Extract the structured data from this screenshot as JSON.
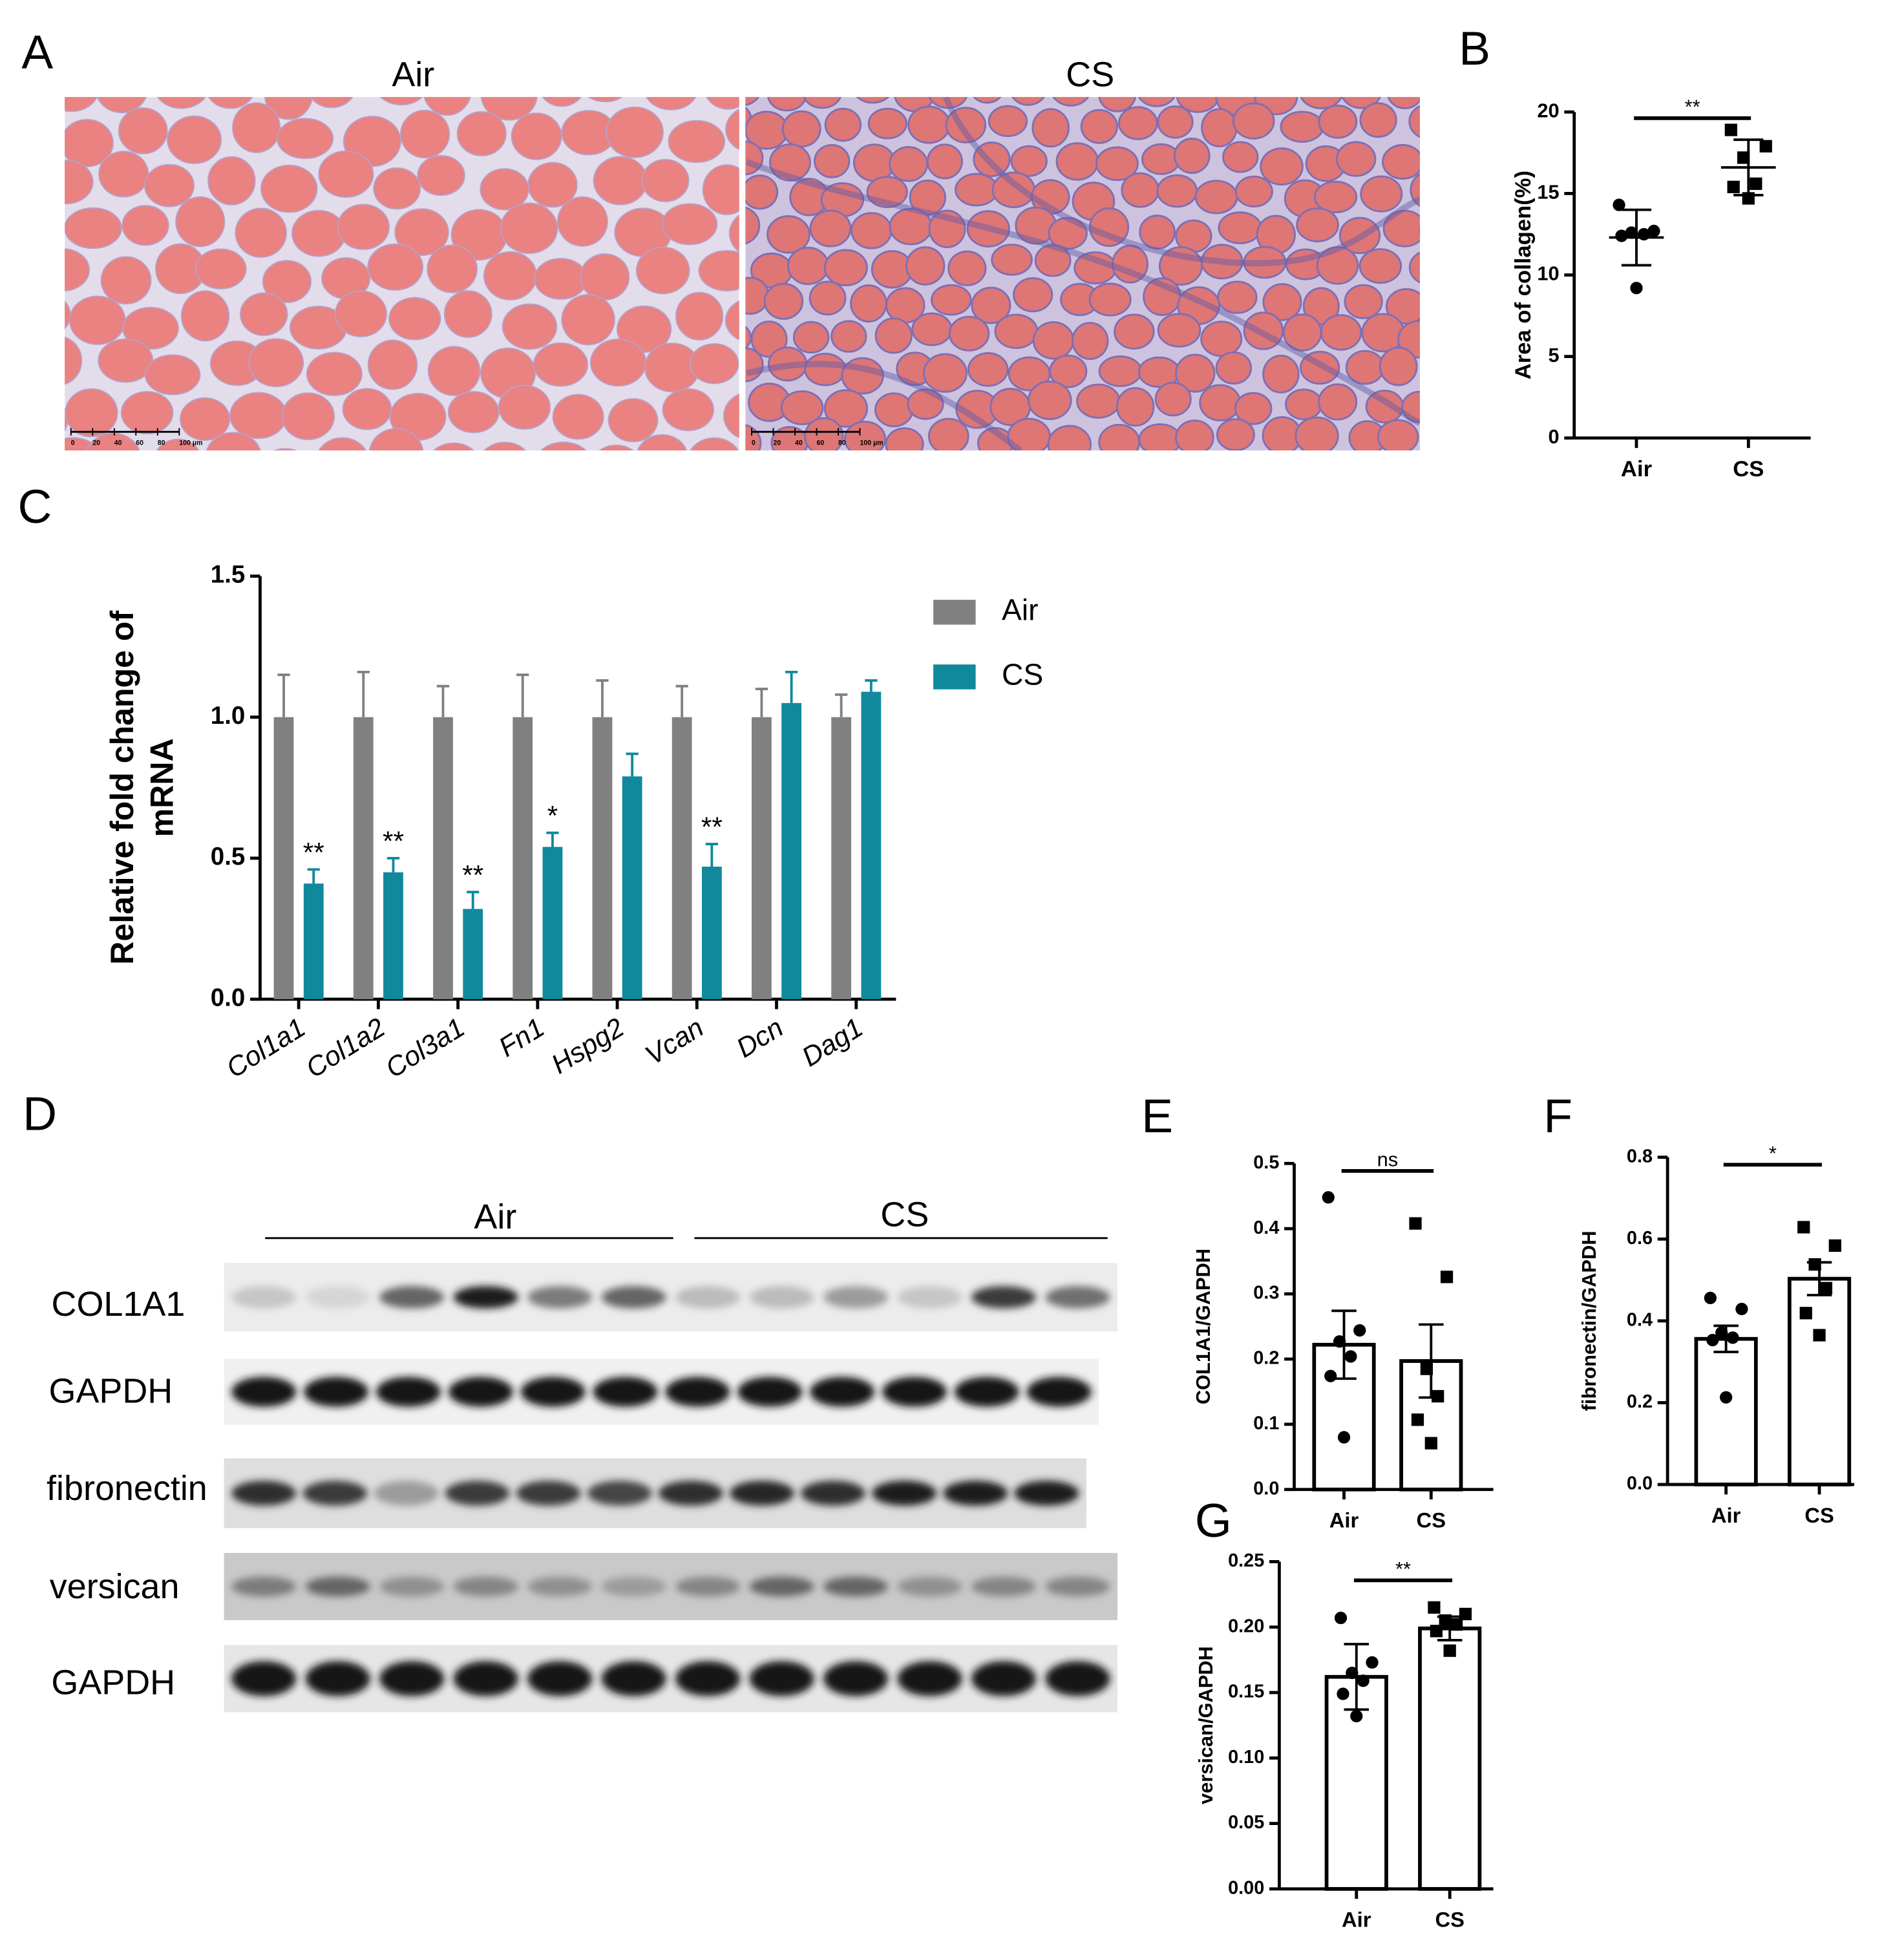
{
  "panel_labels": [
    "A",
    "B",
    "C",
    "D",
    "E",
    "F",
    "G"
  ],
  "histology": {
    "groups": [
      "Air",
      "CS"
    ],
    "scale_bar": [
      "0",
      "20",
      "40",
      "60",
      "80",
      "100 µm"
    ]
  },
  "western_blot": {
    "groups": [
      "Air",
      "CS"
    ],
    "rows": [
      "COL1A1",
      "GAPDH",
      "fibronectin",
      "versican",
      "GAPDH"
    ]
  },
  "chart_data": [
    {
      "type": "dot",
      "ylabel": "Area of collagen(%)",
      "categories": [
        "Air",
        "CS"
      ],
      "points": [
        [
          14.3,
          12.7,
          12.6,
          12.5,
          12.4,
          9.2
        ],
        [
          18.9,
          17.9,
          17.2,
          15.6,
          15.4,
          14.7
        ]
      ],
      "means": [
        12.3,
        16.6
      ],
      "errors": [
        1.7,
        1.7
      ],
      "markers": [
        "circle",
        "square"
      ],
      "ylim": [
        0,
        20
      ],
      "yticks": [
        0,
        5,
        10,
        15,
        20
      ],
      "annotation": "**"
    },
    {
      "type": "bar",
      "ylabel": [
        "Relative fold change of",
        "mRNA"
      ],
      "categories": [
        "Col1a1",
        "Col1a2",
        "Col3a1",
        "Fn1",
        "Hspg2",
        "Vcan",
        "Dcn",
        "Dag1"
      ],
      "series": [
        {
          "name": "Air",
          "color": "#808080",
          "values": [
            1,
            1,
            1,
            1,
            1,
            1,
            1,
            1
          ],
          "errors": [
            0.15,
            0.16,
            0.11,
            0.15,
            0.13,
            0.11,
            0.1,
            0.08
          ]
        },
        {
          "name": "CS",
          "color": "#10899c",
          "values": [
            0.41,
            0.45,
            0.32,
            0.54,
            0.79,
            0.47,
            1.05,
            1.09
          ],
          "errors": [
            0.05,
            0.05,
            0.06,
            0.05,
            0.08,
            0.08,
            0.11,
            0.04
          ]
        }
      ],
      "annotations": [
        "**",
        "**",
        "**",
        "*",
        null,
        "**",
        null,
        null
      ],
      "ylim": [
        0,
        1.5
      ],
      "yticks": [
        {
          "value": 0,
          "label": "0.0"
        },
        0.5,
        {
          "value": 1,
          "label": "1.0"
        },
        1.5
      ],
      "legend": "top-right"
    },
    {
      "type": "bar",
      "ylabel": "COL1A1/GAPDH",
      "categories": [
        "Air",
        "CS"
      ],
      "values": [
        0.222,
        0.197
      ],
      "errors": [
        0.052,
        0.056
      ],
      "points": [
        [
          0.448,
          0.244,
          0.227,
          0.204,
          0.174,
          0.08
        ],
        [
          0.408,
          0.326,
          0.185,
          0.143,
          0.107,
          0.071
        ]
      ],
      "markers": [
        "circle",
        "square"
      ],
      "ylim": [
        0,
        0.5
      ],
      "yticks": [
        {
          "value": 0,
          "label": "0.0"
        },
        0.1,
        0.2,
        0.3,
        0.4,
        0.5
      ],
      "annotation": "ns"
    },
    {
      "type": "bar",
      "ylabel": "fibronectin/GAPDH",
      "categories": [
        "Air",
        "CS"
      ],
      "values": [
        0.356,
        0.503
      ],
      "errors": [
        0.032,
        0.04
      ],
      "points": [
        [
          0.456,
          0.429,
          0.371,
          0.359,
          0.353,
          0.213
        ],
        [
          0.629,
          0.584,
          0.538,
          0.48,
          0.419,
          0.365
        ]
      ],
      "markers": [
        "circle",
        "square"
      ],
      "ylim": [
        0,
        0.8
      ],
      "yticks": [
        {
          "value": 0,
          "label": "0.0"
        },
        0.2,
        0.4,
        0.6,
        0.8
      ],
      "annotation": "*"
    },
    {
      "type": "bar",
      "ylabel": "versican/GAPDH",
      "categories": [
        "Air",
        "CS"
      ],
      "values": [
        0.162,
        0.199
      ],
      "errors": [
        0.025,
        0.009
      ],
      "points": [
        [
          0.207,
          0.173,
          0.165,
          0.159,
          0.149,
          0.132
        ],
        [
          0.215,
          0.21,
          0.205,
          0.202,
          0.197,
          0.182
        ]
      ],
      "markers": [
        "circle",
        "square"
      ],
      "ylim": [
        0,
        0.25
      ],
      "yticks": [
        {
          "value": 0,
          "label": "0.00"
        },
        {
          "value": 0.05,
          "label": "0.05"
        },
        {
          "value": 0.1,
          "label": "0.10"
        },
        {
          "value": 0.15,
          "label": "0.15"
        },
        {
          "value": 0.2,
          "label": "0.20"
        },
        {
          "value": 0.25,
          "label": "0.25"
        }
      ],
      "annotation": "**"
    }
  ]
}
